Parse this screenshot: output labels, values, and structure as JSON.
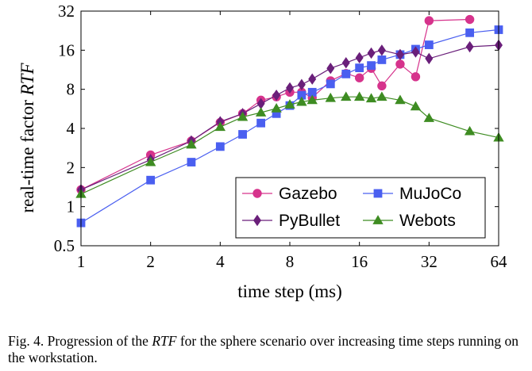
{
  "caption": {
    "prefix": "Fig. 4.   Progression of the ",
    "symbol": "RTF",
    "suffix": " for the sphere scenario over increasing time steps running on the workstation."
  },
  "chart_data": {
    "type": "line",
    "xlabel": "time step (ms)",
    "ylabel_prefix": "real-time factor ",
    "ylabel_symbol": "RTF",
    "xscale": "log2",
    "yscale": "log2",
    "xlim": [
      1,
      64
    ],
    "ylim": [
      0.5,
      32
    ],
    "xticks": [
      1,
      2,
      4,
      8,
      16,
      32,
      64
    ],
    "yticks": [
      0.5,
      1,
      2,
      4,
      8,
      16,
      32
    ],
    "xtick_labels": [
      "1",
      "2",
      "4",
      "8",
      "16",
      "32",
      "64"
    ],
    "ytick_labels": [
      "0.5",
      "1",
      "2",
      "4",
      "8",
      "16",
      "32"
    ],
    "grid": false,
    "legend_position": "lower-right",
    "series": [
      {
        "name": "Gazebo",
        "color": "#d6338c",
        "marker": "circle",
        "x": [
          1,
          2,
          3,
          4,
          5,
          6,
          7,
          8,
          9,
          10,
          12,
          14,
          16,
          18,
          20,
          24,
          28,
          32,
          48
        ],
        "y": [
          1.35,
          2.5,
          3.2,
          4.45,
          5.2,
          6.6,
          7.0,
          7.6,
          7.6,
          6.9,
          9.3,
          10.6,
          9.8,
          11.6,
          8.5,
          12.5,
          10.0,
          27.0,
          27.6
        ]
      },
      {
        "name": "MuJoCo",
        "color": "#4a5ff0",
        "marker": "square",
        "x": [
          1,
          2,
          3,
          4,
          5,
          6,
          7,
          8,
          9,
          10,
          12,
          14,
          16,
          18,
          20,
          24,
          28,
          32,
          48,
          64
        ],
        "y": [
          0.75,
          1.6,
          2.2,
          2.9,
          3.6,
          4.4,
          5.2,
          6.0,
          7.2,
          7.6,
          8.8,
          10.5,
          11.7,
          12.2,
          13.5,
          14.8,
          16.3,
          17.6,
          21.8,
          23.0
        ]
      },
      {
        "name": "PyBullet",
        "color": "#6a1f7a",
        "marker": "diamond",
        "x": [
          1,
          2,
          3,
          4,
          5,
          6,
          7,
          8,
          9,
          10,
          12,
          14,
          16,
          18,
          20,
          24,
          28,
          32,
          48,
          64
        ],
        "y": [
          1.35,
          2.3,
          3.2,
          4.5,
          5.2,
          6.2,
          7.2,
          8.2,
          8.7,
          9.6,
          11.6,
          12.8,
          14.0,
          15.2,
          16.0,
          14.8,
          15.5,
          13.8,
          17.0,
          17.5
        ]
      },
      {
        "name": "Webots",
        "color": "#3e8c22",
        "marker": "triangle",
        "x": [
          1,
          2,
          3,
          4,
          5,
          6,
          7,
          8,
          9,
          10,
          12,
          14,
          16,
          18,
          20,
          24,
          28,
          32,
          48,
          64
        ],
        "y": [
          1.25,
          2.2,
          3.0,
          4.1,
          4.9,
          5.3,
          5.7,
          6.1,
          6.4,
          6.6,
          6.85,
          7.0,
          7.0,
          6.8,
          7.0,
          6.6,
          5.9,
          4.8,
          3.8,
          3.4
        ]
      }
    ]
  }
}
